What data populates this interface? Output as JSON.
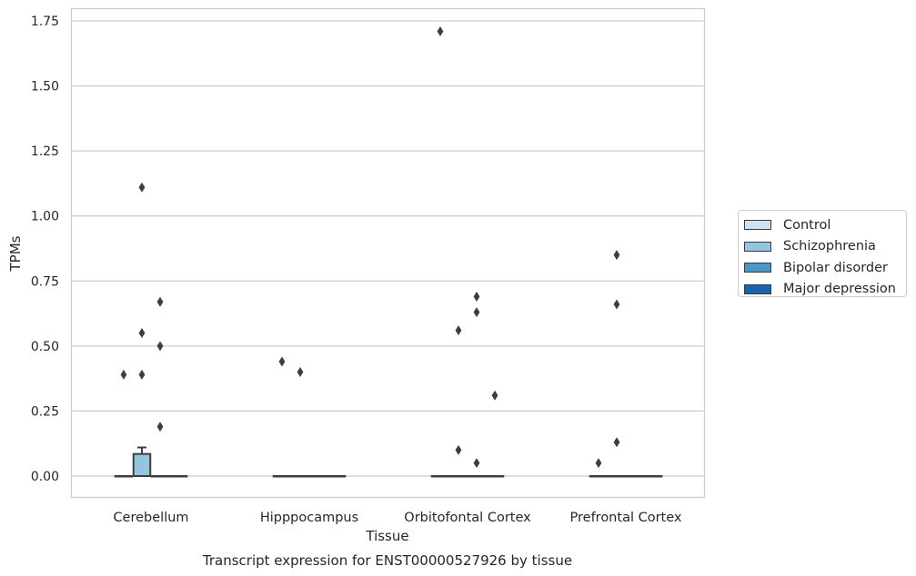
{
  "chart_data": {
    "type": "box",
    "title": "Transcript expression for ENST00000527926 by tissue",
    "xlabel": "Tissue",
    "ylabel": "TPMs",
    "categories": [
      "Cerebellum",
      "Hipppocampus",
      "Orbitofontal Cortex",
      "Prefrontal Cortex"
    ],
    "ylim": [
      -0.085,
      1.8
    ],
    "yticks": [
      "0.00",
      "0.25",
      "0.50",
      "0.75",
      "1.00",
      "1.25",
      "1.50",
      "1.75"
    ],
    "ytick_values": [
      0,
      0.25,
      0.5,
      0.75,
      1.0,
      1.25,
      1.5,
      1.75
    ],
    "grid": "horizontal",
    "legend_position": "right",
    "series": [
      {
        "name": "Control",
        "color": "#d0e1f2",
        "boxes": [
          {
            "q1": 0,
            "median": 0,
            "q3": 0,
            "whisker_low": 0,
            "whisker_high": 0,
            "outliers": [
              0.39
            ]
          },
          {
            "q1": 0,
            "median": 0,
            "q3": 0,
            "whisker_low": 0,
            "whisker_high": 0,
            "outliers": [
              0.44
            ]
          },
          {
            "q1": 0,
            "median": 0,
            "q3": 0,
            "whisker_low": 0,
            "whisker_high": 0,
            "outliers": [
              1.71
            ]
          },
          {
            "q1": 0,
            "median": 0,
            "q3": 0,
            "whisker_low": 0,
            "whisker_high": 0,
            "outliers": [
              0.05
            ]
          }
        ]
      },
      {
        "name": "Schizophrenia",
        "color": "#94c4df",
        "boxes": [
          {
            "q1": 0,
            "median": 0,
            "q3": 0.085,
            "whisker_low": 0,
            "whisker_high": 0.11,
            "outliers": [
              0.39,
              0.55,
              1.11
            ]
          },
          {
            "q1": 0,
            "median": 0,
            "q3": 0,
            "whisker_low": 0,
            "whisker_high": 0,
            "outliers": [
              0.4
            ]
          },
          {
            "q1": 0,
            "median": 0,
            "q3": 0,
            "whisker_low": 0,
            "whisker_high": 0,
            "outliers": [
              0.1,
              0.56
            ]
          },
          {
            "q1": 0,
            "median": 0,
            "q3": 0,
            "whisker_low": 0,
            "whisker_high": 0,
            "outliers": [
              0.13,
              0.66,
              0.85
            ]
          }
        ]
      },
      {
        "name": "Bipolar disorder",
        "color": "#4a98c9",
        "boxes": [
          {
            "q1": 0,
            "median": 0,
            "q3": 0,
            "whisker_low": 0,
            "whisker_high": 0,
            "outliers": [
              0.19,
              0.5,
              0.67
            ]
          },
          {
            "q1": 0,
            "median": 0,
            "q3": 0,
            "whisker_low": 0,
            "whisker_high": 0,
            "outliers": []
          },
          {
            "q1": 0,
            "median": 0,
            "q3": 0,
            "whisker_low": 0,
            "whisker_high": 0,
            "outliers": [
              0.05,
              0.63,
              0.69
            ]
          },
          {
            "q1": 0,
            "median": 0,
            "q3": 0,
            "whisker_low": 0,
            "whisker_high": 0,
            "outliers": []
          }
        ]
      },
      {
        "name": "Major depression",
        "color": "#1764ab",
        "boxes": [
          {
            "q1": 0,
            "median": 0,
            "q3": 0,
            "whisker_low": 0,
            "whisker_high": 0,
            "outliers": []
          },
          {
            "q1": 0,
            "median": 0,
            "q3": 0,
            "whisker_low": 0,
            "whisker_high": 0,
            "outliers": []
          },
          {
            "q1": 0,
            "median": 0,
            "q3": 0,
            "whisker_low": 0,
            "whisker_high": 0,
            "outliers": [
              0.31
            ]
          },
          {
            "q1": 0,
            "median": 0,
            "q3": 0,
            "whisker_low": 0,
            "whisker_high": 0,
            "outliers": []
          }
        ]
      }
    ]
  }
}
